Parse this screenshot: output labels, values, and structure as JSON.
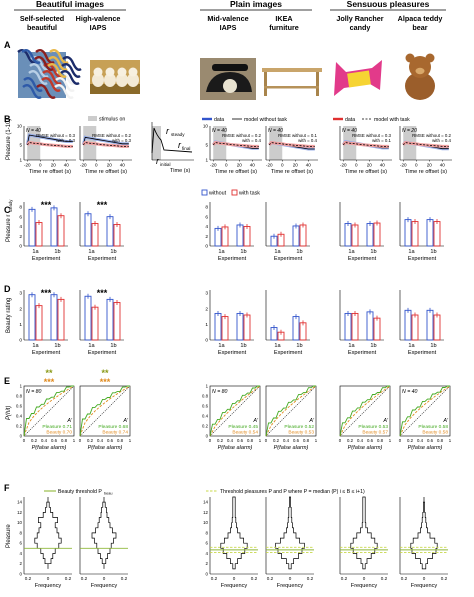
{
  "header": {
    "groups": [
      "Beautiful images",
      "Plain images",
      "Sensuous pleasures"
    ],
    "columns": [
      "Self-selected beautiful",
      "High-valence IAPS",
      "Mid-valence IAPS",
      "IKEA furniture",
      "Jolly Rancher candy",
      "Alpaca teddy bear"
    ]
  },
  "panel_letters": [
    "A",
    "B",
    "C",
    "D",
    "E",
    "F"
  ],
  "colors": {
    "without": "#3355cc",
    "with_task": "#e03030",
    "pleasure_green": "#44aa22",
    "beauty_orange": "#e08a1e",
    "gray_band": "#cccccc"
  },
  "panel_a": {
    "images": [
      "abstract-painting",
      "puppies-photo",
      "rotary-phone-photo",
      "wooden-table-photo",
      "candy-wrapper-photo",
      "teddy-bear-photo"
    ]
  },
  "panel_b": {
    "ylabel": "Pleasure (1-10)",
    "xlabel": "Time re offset (s)",
    "x_ticks": [
      "-20",
      "0",
      "20",
      "40"
    ],
    "y_ticks": [
      "1",
      "5",
      "10"
    ],
    "stimulus_legend": "stimulus on",
    "legend1": {
      "data": "data",
      "model": "model without task"
    },
    "legend2": {
      "data": "data",
      "model": "model with task"
    },
    "schematic": {
      "steady": "r",
      "steady_sub": "steady",
      "initial": "r",
      "initial_sub": "initial",
      "final": "r",
      "final_sub": "final",
      "xlabel": "Time (s)"
    },
    "subplots": [
      {
        "n": "N = 40",
        "rmse_without": "RMSE without = 0.3",
        "rmse_with": "with = 0.3"
      },
      {
        "n": "",
        "rmse_without": "RMSE without = 0.2",
        "rmse_with": "with = 0.3"
      },
      {
        "n": "N = 40",
        "rmse_without": "RMSE without = 0.2",
        "rmse_with": "with = 0.4"
      },
      {
        "n": "N = 40",
        "rmse_without": "RMSE without = 0.1",
        "rmse_with": "with = 0.4"
      },
      {
        "n": "N = 40",
        "rmse_without": "RMSE without = 0.3",
        "rmse_with": "with = 0.1"
      },
      {
        "n": "N = 20",
        "rmse_without": "RMSE without = 0.2",
        "rmse_with": "with = 0.4"
      }
    ]
  },
  "panel_c": {
    "ylabel": "Pleasure r",
    "ylabel_sub": "steady",
    "xlabel": "Experiment",
    "legend_without": "without",
    "legend_with": "with task",
    "sig": "***"
  },
  "panel_d": {
    "ylabel": "Beauty rating",
    "xlabel": "Experiment",
    "sig": "***"
  },
  "panel_e": {
    "ylabel": "P(hit)",
    "xlabel": "P(false alarm)",
    "x_ticks": [
      "0",
      "0.2",
      "0.4",
      "0.6",
      "0.8",
      "1"
    ],
    "n_labels": [
      "N = 80",
      "N = 80",
      "N = 40"
    ],
    "aprime": "A′",
    "pleasure_label": "Pleasure",
    "beauty_label": "Beauty",
    "sig_top": "**",
    "sig_bottom": "***",
    "values": [
      {
        "pleasure": "0.71",
        "beauty": "0.70"
      },
      {
        "pleasure": "0.68",
        "beauty": "0.74"
      },
      {
        "pleasure": "0.45",
        "beauty": "0.54"
      },
      {
        "pleasure": "0.52",
        "beauty": "0.53"
      },
      {
        "pleasure": "0.53",
        "beauty": "0.57"
      },
      {
        "pleasure": "0.58",
        "beauty": "0.58"
      }
    ]
  },
  "panel_f": {
    "ylabel": "Pleasure",
    "xlabel": "Frequency",
    "x_ticks": [
      "0.2",
      "0",
      "0.2"
    ],
    "y_ticks": [
      "0",
      "2",
      "4",
      "6",
      "8",
      "10",
      "12",
      "14"
    ],
    "legend_beauty": "Beauty threshold P",
    "legend_beauty_sub": "beau",
    "legend_threshold": "Threshold pleasures P and P where P = median (P) i ≤ B ≤ i+1)"
  },
  "chart_data": [
    {
      "type": "line",
      "title": "",
      "xlabel": "Time re offset (s)",
      "ylabel": "Pleasure (1-10)",
      "series": [
        {
          "name": "data",
          "x": [
            -20,
            -15,
            -10,
            -5,
            0,
            10,
            20,
            30,
            40,
            50
          ],
          "values": [
            5.2,
            7.6,
            7.4,
            7.2,
            7.0,
            6.5,
            6.0,
            5.8,
            5.6,
            5.5
          ]
        },
        {
          "name": "model without task",
          "x": [
            -20,
            -15,
            -10,
            -5,
            0,
            10,
            20,
            30,
            40,
            50
          ],
          "values": [
            5.2,
            7.5,
            7.3,
            7.1,
            7.0,
            6.4,
            6.0,
            5.7,
            5.6,
            5.5
          ]
        },
        {
          "name": "model with task",
          "x": [
            -20,
            -15,
            -10,
            -5,
            0,
            10,
            20,
            30,
            40,
            50
          ],
          "values": [
            5.2,
            5.8,
            5.6,
            5.5,
            5.4,
            5.0,
            4.8,
            4.7,
            4.6,
            4.6
          ]
        }
      ]
    },
    {
      "type": "bar",
      "xlabel": "Experiment",
      "ylabel": "Pleasure r steady",
      "categories": [
        "1a",
        "1b"
      ],
      "series": [
        {
          "name": "without",
          "values": [
            [
              7.5,
              7.8
            ],
            [
              6.6,
              6.0
            ],
            [
              3.6,
              4.3
            ],
            [
              2.0,
              4.1
            ],
            [
              4.6,
              4.6
            ],
            [
              5.4,
              5.4
            ]
          ]
        },
        {
          "name": "with task",
          "values": [
            [
              4.8,
              6.2
            ],
            [
              4.6,
              4.4
            ],
            [
              3.9,
              4.0
            ],
            [
              2.4,
              4.3
            ],
            [
              4.3,
              4.7
            ],
            [
              5.0,
              5.0
            ]
          ]
        }
      ]
    },
    {
      "type": "bar",
      "xlabel": "Experiment",
      "ylabel": "Beauty rating",
      "categories": [
        "1a",
        "1b"
      ],
      "series": [
        {
          "name": "without",
          "values": [
            [
              2.9,
              2.9
            ],
            [
              2.8,
              2.6
            ],
            [
              1.7,
              1.7
            ],
            [
              0.8,
              1.5
            ],
            [
              1.7,
              1.8
            ],
            [
              1.9,
              1.9
            ]
          ]
        },
        {
          "name": "with task",
          "values": [
            [
              2.2,
              2.6
            ],
            [
              2.1,
              2.4
            ],
            [
              1.5,
              1.6
            ],
            [
              0.5,
              1.1
            ],
            [
              1.7,
              1.4
            ],
            [
              1.6,
              1.6
            ]
          ]
        }
      ]
    }
  ]
}
